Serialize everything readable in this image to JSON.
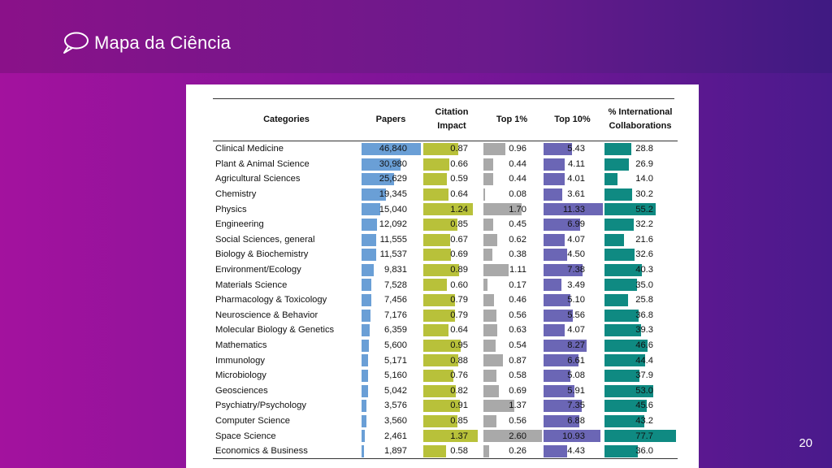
{
  "header": {
    "title": "Mapa da Ciência",
    "icon": "speech-bubble-icon"
  },
  "page_number": "20",
  "colors": {
    "papers": "#6a9fd6",
    "citation_impact": "#b8c13a",
    "top1": "#a9a9a9",
    "top10": "#6b66b5",
    "intl": "#0f8a82"
  },
  "table": {
    "headers": {
      "category": "Categories",
      "papers": "Papers",
      "citation": "Citation Impact",
      "top1": "Top 1%",
      "top10": "Top 10%",
      "intl": "% International Collaborations"
    },
    "rows": [
      {
        "category": "Clinical Medicine",
        "papers": "46,840",
        "citation": "0.87",
        "top1": "0.96",
        "top10": "5.43",
        "intl": "28.8"
      },
      {
        "category": "Plant & Animal Science",
        "papers": "30,980",
        "citation": "0.66",
        "top1": "0.44",
        "top10": "4.11",
        "intl": "26.9"
      },
      {
        "category": "Agricultural Sciences",
        "papers": "25,629",
        "citation": "0.59",
        "top1": "0.44",
        "top10": "4.01",
        "intl": "14.0"
      },
      {
        "category": "Chemistry",
        "papers": "19,345",
        "citation": "0.64",
        "top1": "0.08",
        "top10": "3.61",
        "intl": "30.2"
      },
      {
        "category": "Physics",
        "papers": "15,040",
        "citation": "1.24",
        "top1": "1.70",
        "top10": "11.33",
        "intl": "55.2"
      },
      {
        "category": "Engineering",
        "papers": "12,092",
        "citation": "0.85",
        "top1": "0.45",
        "top10": "6.99",
        "intl": "32.2"
      },
      {
        "category": "Social Sciences, general",
        "papers": "11,555",
        "citation": "0.67",
        "top1": "0.62",
        "top10": "4.07",
        "intl": "21.6"
      },
      {
        "category": "Biology & Biochemistry",
        "papers": "11,537",
        "citation": "0.69",
        "top1": "0.38",
        "top10": "4.50",
        "intl": "32.6"
      },
      {
        "category": "Environment/Ecology",
        "papers": "9,831",
        "citation": "0.89",
        "top1": "1.11",
        "top10": "7.38",
        "intl": "40.3"
      },
      {
        "category": "Materials Science",
        "papers": "7,528",
        "citation": "0.60",
        "top1": "0.17",
        "top10": "3.49",
        "intl": "35.0"
      },
      {
        "category": "Pharmacology & Toxicology",
        "papers": "7,456",
        "citation": "0.79",
        "top1": "0.46",
        "top10": "5.10",
        "intl": "25.8"
      },
      {
        "category": "Neuroscience & Behavior",
        "papers": "7,176",
        "citation": "0.79",
        "top1": "0.56",
        "top10": "5.56",
        "intl": "36.8"
      },
      {
        "category": "Molecular Biology & Genetics",
        "papers": "6,359",
        "citation": "0.64",
        "top1": "0.63",
        "top10": "4.07",
        "intl": "39.3"
      },
      {
        "category": "Mathematics",
        "papers": "5,600",
        "citation": "0.95",
        "top1": "0.54",
        "top10": "8.27",
        "intl": "46.6"
      },
      {
        "category": "Immunology",
        "papers": "5,171",
        "citation": "0.88",
        "top1": "0.87",
        "top10": "6.61",
        "intl": "44.4"
      },
      {
        "category": "Microbiology",
        "papers": "5,160",
        "citation": "0.76",
        "top1": "0.58",
        "top10": "5.08",
        "intl": "37.9"
      },
      {
        "category": "Geosciences",
        "papers": "5,042",
        "citation": "0.82",
        "top1": "0.69",
        "top10": "5.91",
        "intl": "53.0"
      },
      {
        "category": "Psychiatry/Psychology",
        "papers": "3,576",
        "citation": "0.91",
        "top1": "1.37",
        "top10": "7.35",
        "intl": "45.6"
      },
      {
        "category": "Computer Science",
        "papers": "3,560",
        "citation": "0.85",
        "top1": "0.56",
        "top10": "6.88",
        "intl": "43.2"
      },
      {
        "category": "Space Science",
        "papers": "2,461",
        "citation": "1.37",
        "top1": "2.60",
        "top10": "10.93",
        "intl": "77.7"
      },
      {
        "category": "Economics & Business",
        "papers": "1,897",
        "citation": "0.58",
        "top1": "0.26",
        "top10": "4.43",
        "intl": "36.0"
      }
    ]
  }
}
